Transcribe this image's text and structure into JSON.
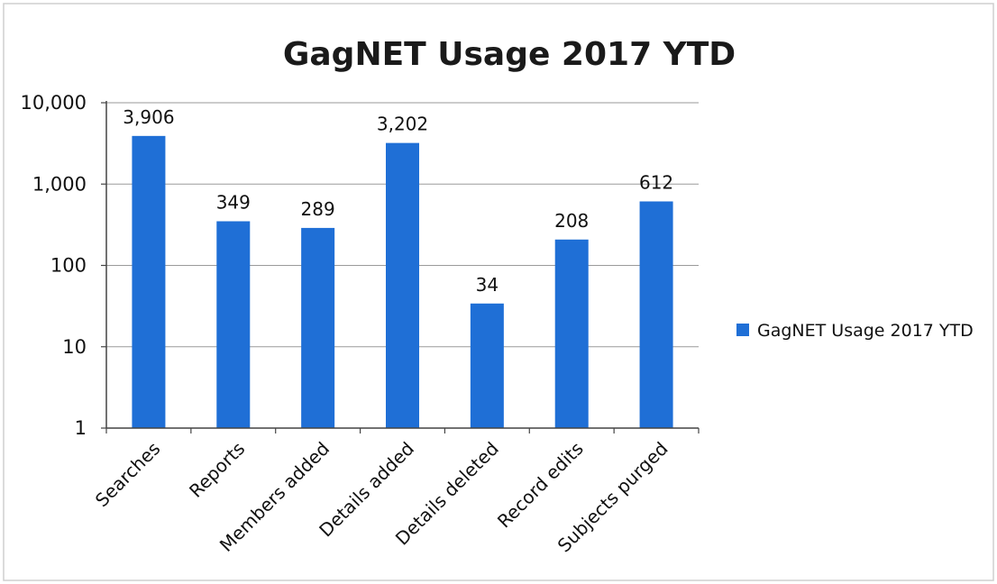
{
  "chart_data": {
    "type": "bar",
    "title": "GagNET Usage 2017 YTD",
    "categories": [
      "Searches",
      "Reports",
      "Members added",
      "Details added",
      "Details deleted",
      "Record edits",
      "Subjects purged"
    ],
    "series": [
      {
        "name": "GagNET Usage 2017 YTD",
        "values": [
          3906,
          349,
          289,
          3202,
          34,
          208,
          612
        ],
        "data_labels": [
          "3,906",
          "349",
          "289",
          "3,202",
          "34",
          "208",
          "612"
        ],
        "color": "#1f6fd6"
      }
    ],
    "y_scale": "log",
    "ylim": [
      1,
      10000
    ],
    "y_ticks": [
      1,
      10,
      100,
      1000,
      10000
    ],
    "y_tick_labels": [
      "1",
      "10",
      "100",
      "1,000",
      "10,000"
    ],
    "xlabel": "",
    "ylabel": "",
    "grid": true,
    "legend_position": "right"
  }
}
